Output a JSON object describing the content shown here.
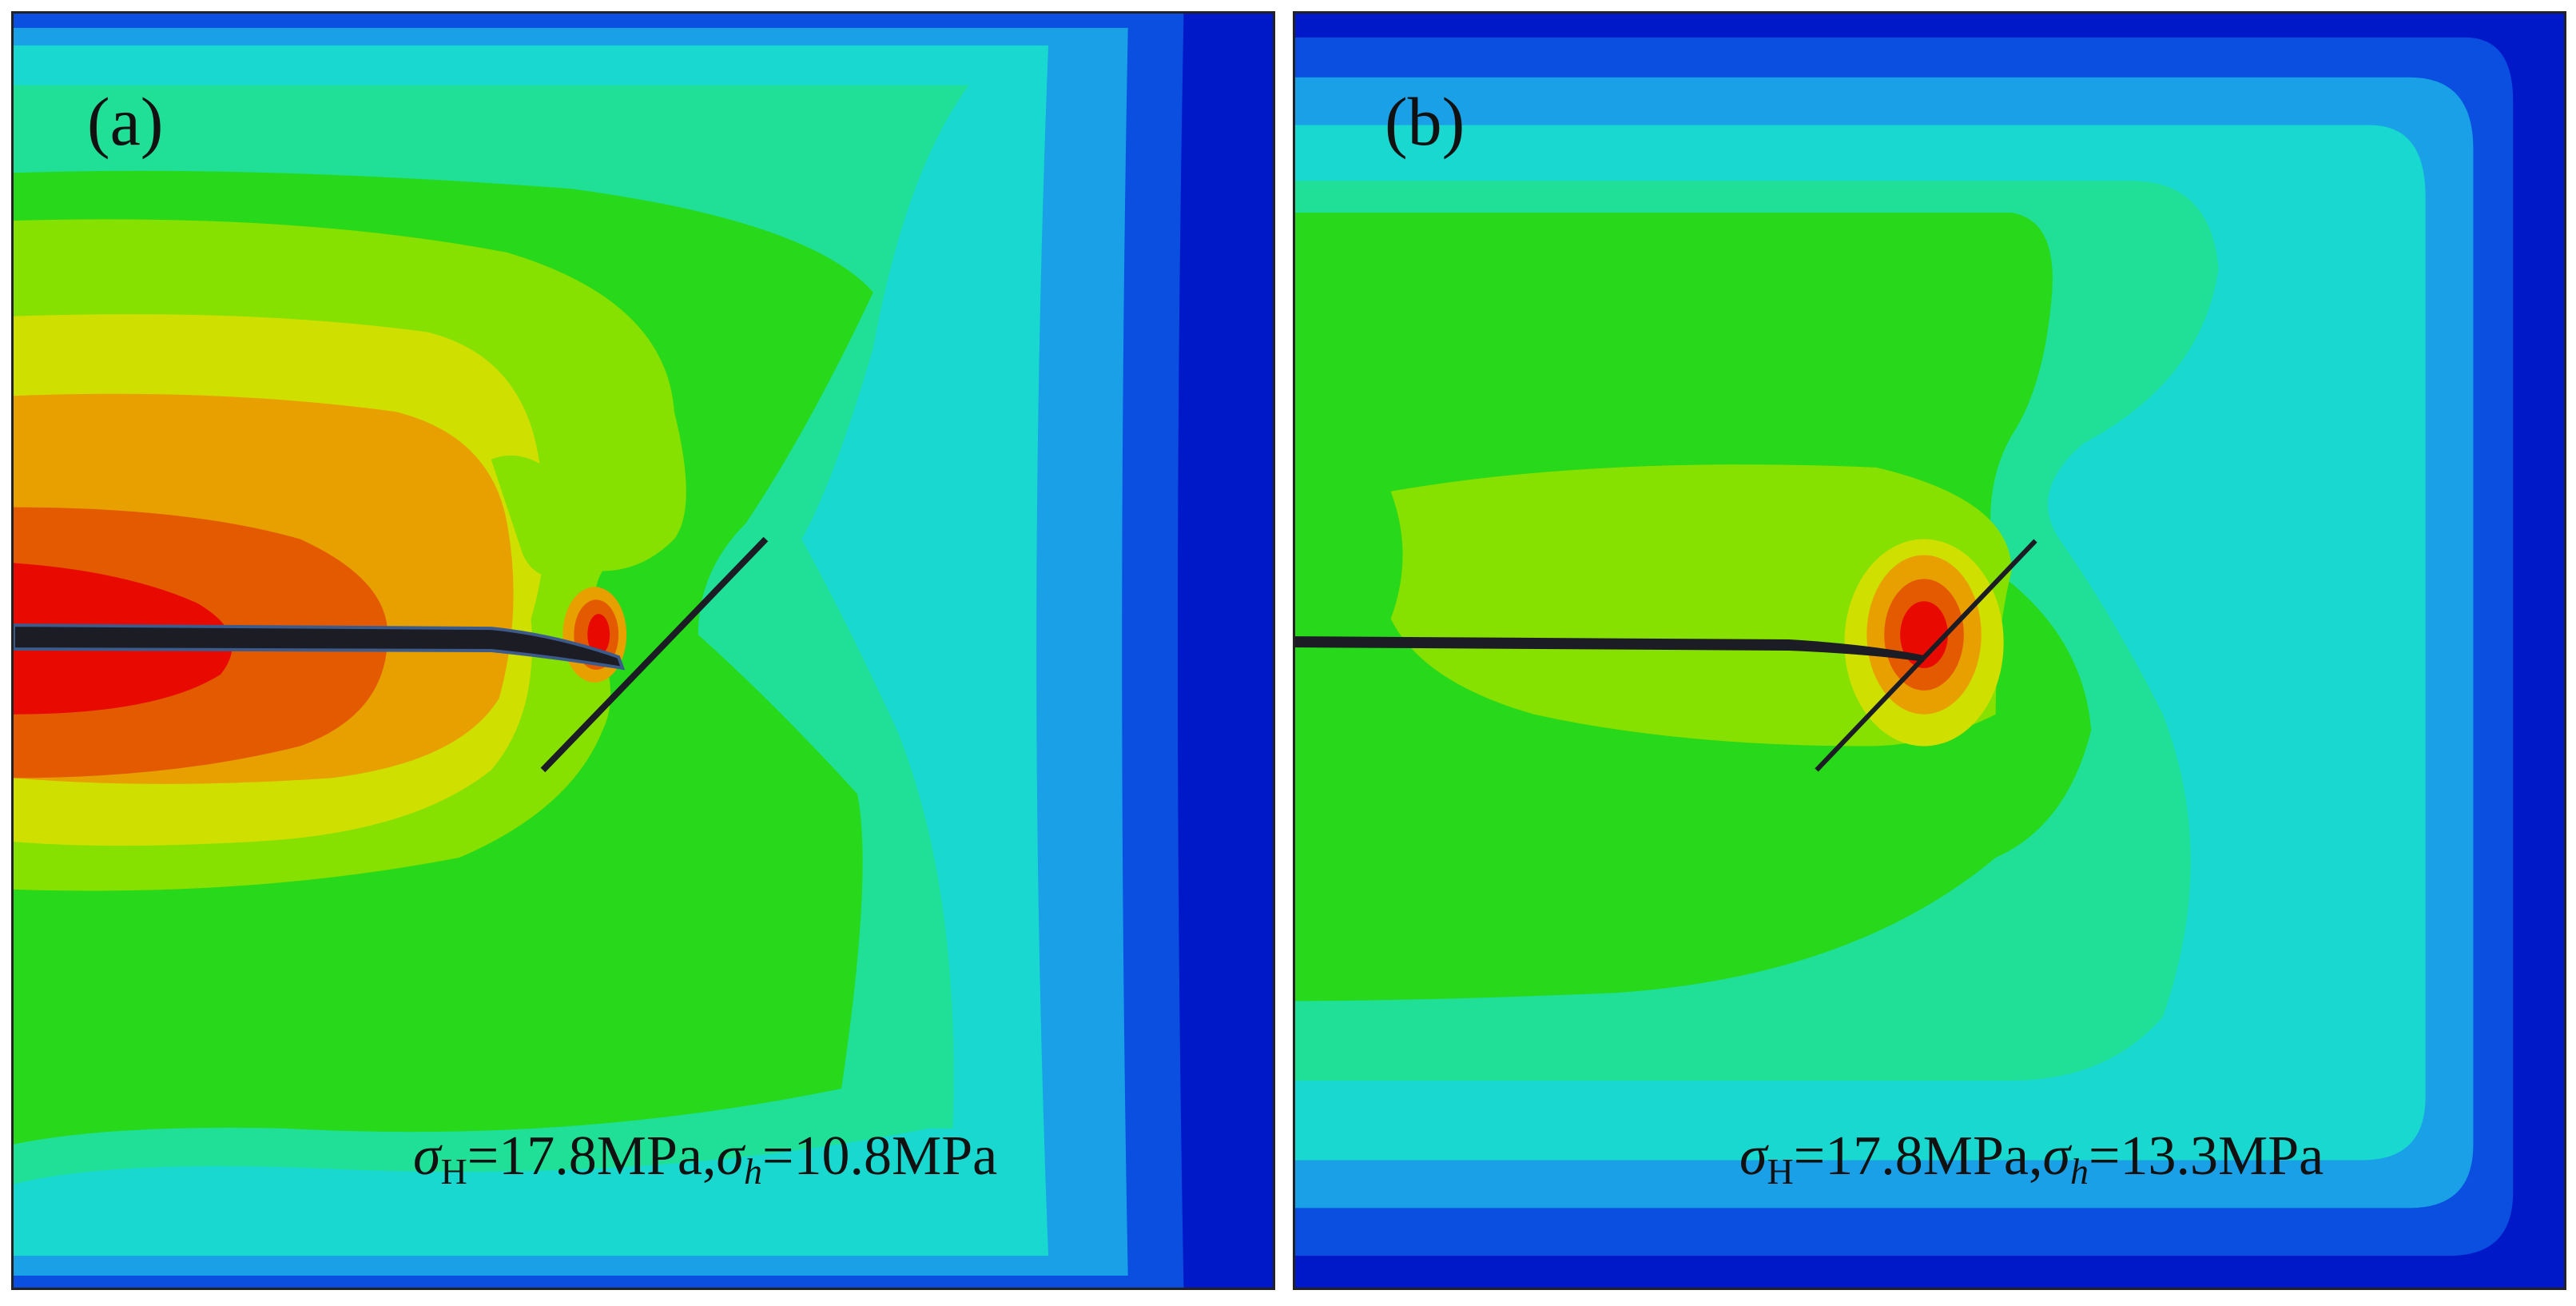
{
  "panels": [
    {
      "label": "(a)",
      "stress": {
        "max_symbol": "σ",
        "max_sub": "H",
        "max_value": "=17.8MPa,",
        "min_symbol": "σ",
        "min_sub": "h",
        "min_value": "=10.8MPa"
      }
    },
    {
      "label": "(b)",
      "stress": {
        "max_symbol": "σ",
        "max_sub": "H",
        "max_value": "=17.8MPa,",
        "min_symbol": "σ",
        "min_sub": "h",
        "min_value": "=13.3MPa"
      }
    }
  ],
  "colors": {
    "deep_blue": "#0019c8",
    "blue": "#0a4fe0",
    "light_blue": "#1aa0e6",
    "cyan": "#18d8d0",
    "teal_green": "#20df96",
    "bright_green": "#28d81a",
    "yellow_green": "#86e000",
    "yellow": "#cfe000",
    "orange": "#e8a000",
    "red_orange": "#e45a00",
    "red": "#e80a00",
    "crack": "#1c1c24"
  }
}
